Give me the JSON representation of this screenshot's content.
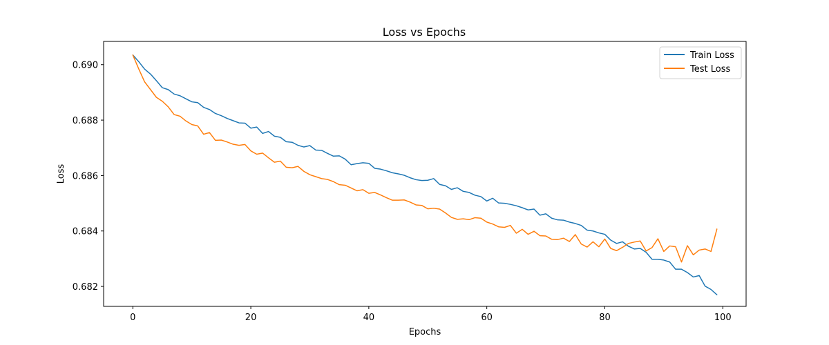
{
  "chart_data": {
    "type": "line",
    "title": "Loss vs Epochs",
    "xlabel": "Epochs",
    "ylabel": "Loss",
    "xlim": [
      -4.95,
      103.95
    ],
    "ylim": [
      0.68128,
      0.69084
    ],
    "xticks": [
      0,
      20,
      40,
      60,
      80,
      100
    ],
    "yticks": [
      0.682,
      0.684,
      0.686,
      0.688,
      0.69
    ],
    "xtick_labels": [
      "0",
      "20",
      "40",
      "60",
      "80",
      "100"
    ],
    "ytick_labels": [
      "0.682",
      "0.684",
      "0.686",
      "0.688",
      "0.690"
    ],
    "grid": false,
    "legend_position": "top-right",
    "series": [
      {
        "name": "Train Loss",
        "color": "#1f77b4",
        "values": [
          0.69035,
          0.69011,
          0.68984,
          0.68966,
          0.68942,
          0.68917,
          0.6891,
          0.68894,
          0.68888,
          0.68877,
          0.68866,
          0.68863,
          0.68846,
          0.68838,
          0.68824,
          0.68816,
          0.68806,
          0.68798,
          0.6879,
          0.68789,
          0.68771,
          0.68775,
          0.68752,
          0.68759,
          0.68742,
          0.68738,
          0.68722,
          0.6872,
          0.68709,
          0.68703,
          0.68708,
          0.68692,
          0.68691,
          0.6868,
          0.6867,
          0.68671,
          0.68659,
          0.68639,
          0.68643,
          0.68646,
          0.68644,
          0.68626,
          0.68623,
          0.68617,
          0.6861,
          0.68606,
          0.68601,
          0.68592,
          0.68585,
          0.68582,
          0.68583,
          0.68589,
          0.68568,
          0.68563,
          0.6855,
          0.68556,
          0.68543,
          0.68539,
          0.68529,
          0.68524,
          0.68508,
          0.68518,
          0.68501,
          0.685,
          0.68496,
          0.68491,
          0.68484,
          0.68476,
          0.68479,
          0.68457,
          0.68462,
          0.68446,
          0.6844,
          0.68439,
          0.68432,
          0.68427,
          0.6842,
          0.68403,
          0.684,
          0.68393,
          0.68388,
          0.68367,
          0.68355,
          0.68361,
          0.68345,
          0.68335,
          0.68337,
          0.68323,
          0.68298,
          0.68298,
          0.68295,
          0.68288,
          0.68262,
          0.68262,
          0.6825,
          0.68234,
          0.68239,
          0.68201,
          0.68189,
          0.6817
        ]
      },
      {
        "name": "Test Loss",
        "color": "#ff7f0e",
        "values": [
          0.69035,
          0.68985,
          0.68938,
          0.6891,
          0.68882,
          0.68868,
          0.68848,
          0.6882,
          0.68814,
          0.68797,
          0.68784,
          0.68779,
          0.68749,
          0.68755,
          0.68727,
          0.68728,
          0.68721,
          0.68713,
          0.68709,
          0.68712,
          0.68689,
          0.68677,
          0.68681,
          0.68664,
          0.68648,
          0.68652,
          0.6863,
          0.68628,
          0.68633,
          0.68615,
          0.68603,
          0.68596,
          0.68589,
          0.68586,
          0.68578,
          0.68567,
          0.68565,
          0.68555,
          0.68545,
          0.68549,
          0.68536,
          0.68539,
          0.6853,
          0.6852,
          0.68511,
          0.68511,
          0.68512,
          0.68504,
          0.68494,
          0.68492,
          0.6848,
          0.68482,
          0.68479,
          0.68465,
          0.68449,
          0.68442,
          0.68444,
          0.68441,
          0.68448,
          0.68446,
          0.68432,
          0.68425,
          0.68415,
          0.68413,
          0.6842,
          0.68392,
          0.68406,
          0.68388,
          0.68399,
          0.68383,
          0.68382,
          0.6837,
          0.68369,
          0.68374,
          0.68362,
          0.68387,
          0.68353,
          0.68342,
          0.68361,
          0.68343,
          0.68371,
          0.68337,
          0.68329,
          0.68341,
          0.68355,
          0.6836,
          0.68364,
          0.68328,
          0.6834,
          0.68372,
          0.68326,
          0.68346,
          0.68343,
          0.68288,
          0.68347,
          0.68314,
          0.68331,
          0.68335,
          0.68326,
          0.68407
        ]
      }
    ]
  }
}
